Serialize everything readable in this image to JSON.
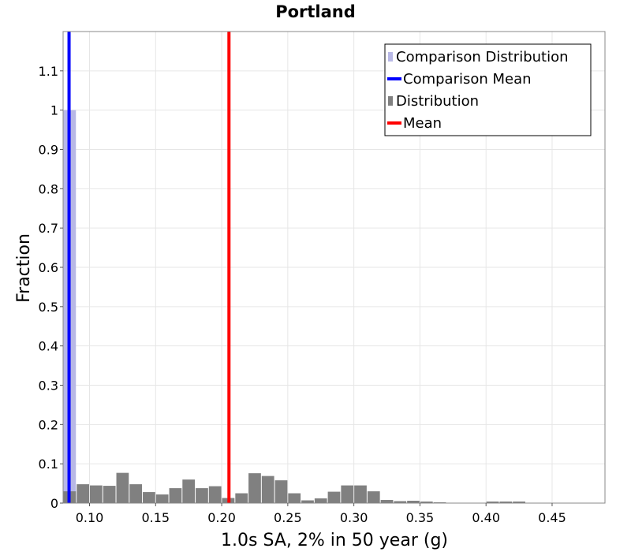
{
  "chart_data": {
    "type": "bar",
    "title": "Portland",
    "xlabel": "1.0s SA, 2% in 50 year (g)",
    "ylabel": "Fraction",
    "xlim": [
      0.08,
      0.49
    ],
    "ylim": [
      0,
      1.2
    ],
    "x_ticks": [
      "0.10",
      "0.15",
      "0.20",
      "0.25",
      "0.30",
      "0.35",
      "0.40",
      "0.45"
    ],
    "x_tick_values": [
      0.1,
      0.15,
      0.2,
      0.25,
      0.3,
      0.35,
      0.4,
      0.45
    ],
    "y_ticks": [
      "0",
      "0.1",
      "0.2",
      "0.3",
      "0.4",
      "0.5",
      "0.6",
      "0.7",
      "0.8",
      "0.9",
      "1",
      "1.1"
    ],
    "y_tick_values": [
      0,
      0.1,
      0.2,
      0.3,
      0.4,
      0.5,
      0.6,
      0.7,
      0.8,
      0.9,
      1.0,
      1.1
    ],
    "grid": true,
    "legend_position": "top-right",
    "bin_width": 0.01,
    "series": [
      {
        "name": "Comparison Distribution",
        "kind": "histogram",
        "color": "#b8b8e6",
        "x": [
          0.08
        ],
        "values": [
          1.0
        ]
      },
      {
        "name": "Comparison Mean",
        "kind": "vline",
        "color": "#0000ff",
        "x": 0.0845
      },
      {
        "name": "Distribution",
        "kind": "histogram",
        "color": "#808080",
        "x": [
          0.08,
          0.09,
          0.1,
          0.11,
          0.12,
          0.13,
          0.14,
          0.15,
          0.16,
          0.17,
          0.18,
          0.19,
          0.2,
          0.21,
          0.22,
          0.23,
          0.24,
          0.25,
          0.26,
          0.27,
          0.28,
          0.29,
          0.3,
          0.31,
          0.32,
          0.33,
          0.34,
          0.35,
          0.36,
          0.37,
          0.38,
          0.39,
          0.4,
          0.41,
          0.42,
          0.43,
          0.44,
          0.45,
          0.46,
          0.47,
          0.48
        ],
        "values": [
          0.03,
          0.048,
          0.045,
          0.044,
          0.077,
          0.048,
          0.028,
          0.022,
          0.038,
          0.06,
          0.038,
          0.043,
          0.013,
          0.025,
          0.076,
          0.069,
          0.058,
          0.025,
          0.007,
          0.012,
          0.029,
          0.045,
          0.045,
          0.03,
          0.008,
          0.005,
          0.006,
          0.004,
          0.002,
          0.001,
          0.001,
          0.001,
          0.004,
          0.004,
          0.004,
          0.001,
          0.001,
          0.001,
          0.001,
          0.001,
          0.001
        ]
      },
      {
        "name": "Mean",
        "kind": "vline",
        "color": "#ff0000",
        "x": 0.2055
      }
    ]
  }
}
